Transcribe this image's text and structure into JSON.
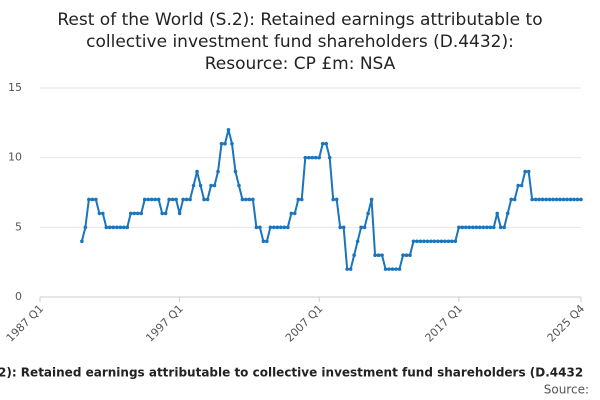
{
  "chart_data": {
    "type": "line",
    "title": [
      "Rest of the World (S.2): Retained earnings attributable to",
      "collective investment fund shareholders (D.4432):",
      "Resource: CP £m: NSA"
    ],
    "footer": "2): Retained earnings attributable to collective investment fund shareholders (D.4432",
    "source": "Source:",
    "categories": [
      "1987 Q1",
      null,
      null,
      null,
      null,
      null,
      null,
      null,
      null,
      null,
      null,
      null,
      null,
      null,
      null,
      null,
      null,
      null,
      null,
      null,
      null,
      null,
      null,
      null,
      null,
      null,
      null,
      null,
      null,
      null,
      null,
      null,
      null,
      null,
      null,
      null,
      null,
      null,
      null,
      null,
      "1997 Q1",
      null,
      null,
      null,
      null,
      null,
      null,
      null,
      null,
      null,
      null,
      null,
      null,
      null,
      null,
      null,
      null,
      null,
      null,
      null,
      null,
      null,
      null,
      null,
      null,
      null,
      null,
      null,
      null,
      null,
      null,
      null,
      null,
      null,
      null,
      null,
      null,
      null,
      null,
      null,
      "2007 Q1",
      null,
      null,
      null,
      null,
      null,
      null,
      null,
      null,
      null,
      null,
      null,
      null,
      null,
      null,
      null,
      null,
      null,
      null,
      null,
      null,
      null,
      null,
      null,
      null,
      null,
      null,
      null,
      null,
      null,
      null,
      null,
      null,
      null,
      null,
      null,
      null,
      null,
      null,
      null,
      "2017 Q1",
      null,
      null,
      null,
      null,
      null,
      null,
      null,
      null,
      null,
      null,
      null,
      null,
      null,
      null,
      null,
      null,
      null,
      null,
      null,
      null,
      null,
      null,
      null,
      null,
      null,
      null,
      null,
      null,
      null,
      null,
      null,
      null,
      null,
      null,
      "2025 Q4"
    ],
    "series": [
      {
        "color": "#1a75bc",
        "values": [
          null,
          null,
          null,
          null,
          null,
          null,
          null,
          null,
          null,
          null,
          null,
          null,
          4,
          5,
          7,
          7,
          7,
          6,
          6,
          5,
          5,
          5,
          5,
          5,
          5,
          5,
          6,
          6,
          6,
          6,
          7,
          7,
          7,
          7,
          7,
          6,
          6,
          7,
          7,
          7,
          6,
          7,
          7,
          7,
          8,
          9,
          8,
          7,
          7,
          8,
          8,
          9,
          11,
          11,
          12,
          11,
          9,
          8,
          7,
          7,
          7,
          7,
          5,
          5,
          4,
          4,
          5,
          5,
          5,
          5,
          5,
          5,
          6,
          6,
          7,
          7,
          10,
          10,
          10,
          10,
          10,
          11,
          11,
          10,
          7,
          7,
          5,
          5,
          2,
          2,
          3,
          4,
          5,
          5,
          6,
          7,
          3,
          3,
          3,
          2,
          2,
          2,
          2,
          2,
          3,
          3,
          3,
          4,
          4,
          4,
          4,
          4,
          4,
          4,
          4,
          4,
          4,
          4,
          4,
          4,
          5,
          5,
          5,
          5,
          5,
          5,
          5,
          5,
          5,
          5,
          5,
          6,
          5,
          5,
          6,
          7,
          7,
          8,
          8,
          9,
          9,
          7,
          7,
          7,
          7,
          7,
          7,
          7,
          7,
          7,
          7,
          7,
          7,
          7,
          7,
          7
        ]
      }
    ],
    "ylim": [
      0,
      15
    ],
    "yticks": [
      0,
      5,
      10,
      15
    ],
    "grid": true
  }
}
